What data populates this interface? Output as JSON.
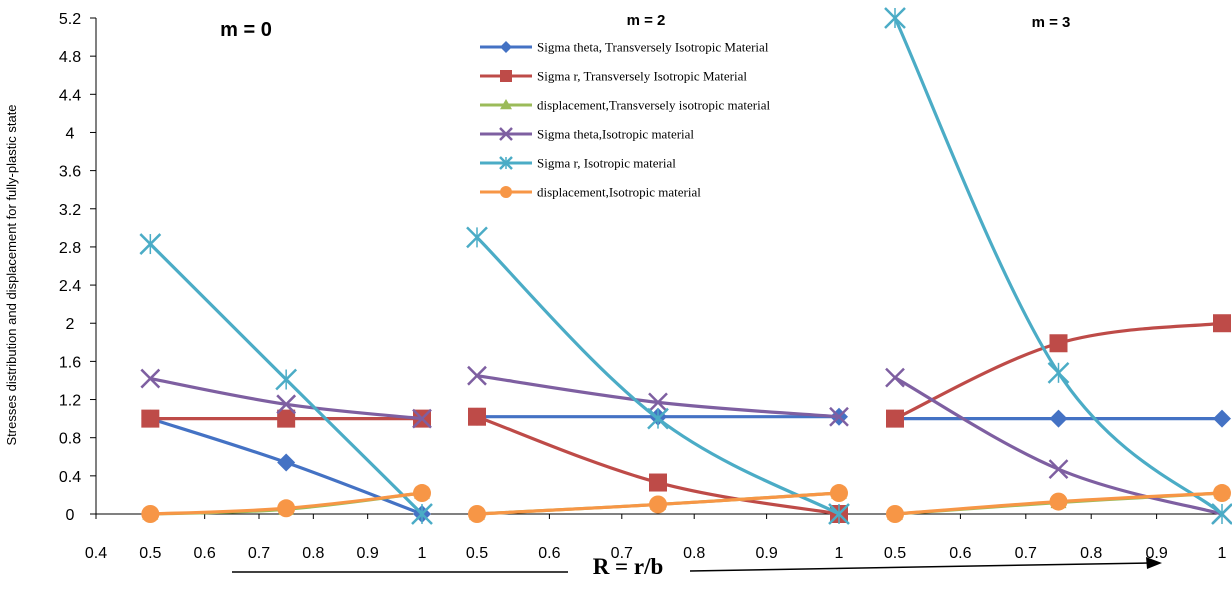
{
  "chart_data": {
    "type": "line",
    "ylabel": "Stresses distribution and displacement for fully-plastic state",
    "xlabel": "R = r/b",
    "ylim": [
      0,
      5.2
    ],
    "yticks": [
      "0",
      "0.4",
      "0.8",
      "1.2",
      "1.6",
      "2",
      "2.4",
      "2.8",
      "3.2",
      "3.6",
      "4",
      "4.4",
      "4.8",
      "5.2"
    ],
    "legend_position": "top-center",
    "series_styles": [
      {
        "name": "Sigma theta, Transversely Isotropic Material",
        "color": "#4472C4",
        "marker": "diamond"
      },
      {
        "name": "Sigma r, Transversely Isotropic Material",
        "color": "#BE4B48",
        "marker": "square"
      },
      {
        "name": "displacement,Transversely isotropic material",
        "color": "#9BBB59",
        "marker": "triangle"
      },
      {
        "name": "Sigma theta,Isotropic material",
        "color": "#7E5FA1",
        "marker": "x"
      },
      {
        "name": "Sigma r, Isotropic material",
        "color": "#4BACC6",
        "marker": "star"
      },
      {
        "name": "displacement,Isotropic material",
        "color": "#F79646",
        "marker": "circle"
      }
    ],
    "panels": [
      {
        "title": "m = 0",
        "xticks": [
          "0.4",
          "0.5",
          "0.6",
          "0.7",
          "0.8",
          "0.9",
          "1"
        ],
        "xlim": [
          0.4,
          1.0
        ],
        "x": [
          0.5,
          0.75,
          1.0
        ],
        "series": [
          {
            "name": "Sigma theta, Transversely Isotropic Material",
            "values": [
              1.0,
              0.54,
              0.0
            ]
          },
          {
            "name": "Sigma r, Transversely Isotropic Material",
            "values": [
              1.0,
              1.0,
              1.0
            ]
          },
          {
            "name": "displacement,Transversely isotropic material",
            "values": [
              0.0,
              0.05,
              0.22
            ]
          },
          {
            "name": "Sigma theta,Isotropic material",
            "values": [
              1.42,
              1.15,
              1.0
            ]
          },
          {
            "name": "Sigma r, Isotropic material",
            "values": [
              2.83,
              1.41,
              0.0
            ]
          },
          {
            "name": "displacement,Isotropic material",
            "values": [
              0.0,
              0.06,
              0.22
            ]
          }
        ]
      },
      {
        "title": "m = 2",
        "xticks": [
          "0.5",
          "0.6",
          "0.7",
          "0.8",
          "0.9",
          "1"
        ],
        "xlim": [
          0.5,
          1.0
        ],
        "x": [
          0.5,
          0.75,
          1.0
        ],
        "series": [
          {
            "name": "Sigma theta, Transversely Isotropic Material",
            "values": [
              1.02,
              1.02,
              1.02
            ]
          },
          {
            "name": "Sigma r, Transversely Isotropic Material",
            "values": [
              1.02,
              0.33,
              0.0
            ]
          },
          {
            "name": "displacement,Transversely isotropic material",
            "values": [
              0.0,
              0.1,
              0.22
            ]
          },
          {
            "name": "Sigma theta,Isotropic material",
            "values": [
              1.45,
              1.17,
              1.02
            ]
          },
          {
            "name": "Sigma r, Isotropic material",
            "values": [
              2.9,
              1.0,
              0.0
            ]
          },
          {
            "name": "displacement,Isotropic material",
            "values": [
              0.0,
              0.1,
              0.22
            ]
          }
        ]
      },
      {
        "title": "m = 3",
        "xticks": [
          "0.5",
          "0.6",
          "0.7",
          "0.8",
          "0.9",
          "1"
        ],
        "xlim": [
          0.5,
          1.0
        ],
        "x": [
          0.5,
          0.75,
          1.0
        ],
        "series": [
          {
            "name": "Sigma theta, Transversely Isotropic Material",
            "values": [
              1.0,
              1.0,
              1.0
            ]
          },
          {
            "name": "Sigma r, Transversely Isotropic Material",
            "values": [
              1.0,
              1.79,
              2.0
            ]
          },
          {
            "name": "displacement,Transversely isotropic material",
            "values": [
              0.0,
              0.12,
              0.22
            ]
          },
          {
            "name": "Sigma theta,Isotropic material",
            "values": [
              1.43,
              0.47,
              0.0
            ]
          },
          {
            "name": "Sigma r, Isotropic material",
            "values": [
              5.2,
              1.48,
              0.0
            ]
          },
          {
            "name": "displacement,Isotropic material",
            "values": [
              0.0,
              0.13,
              0.22
            ]
          }
        ]
      }
    ]
  }
}
